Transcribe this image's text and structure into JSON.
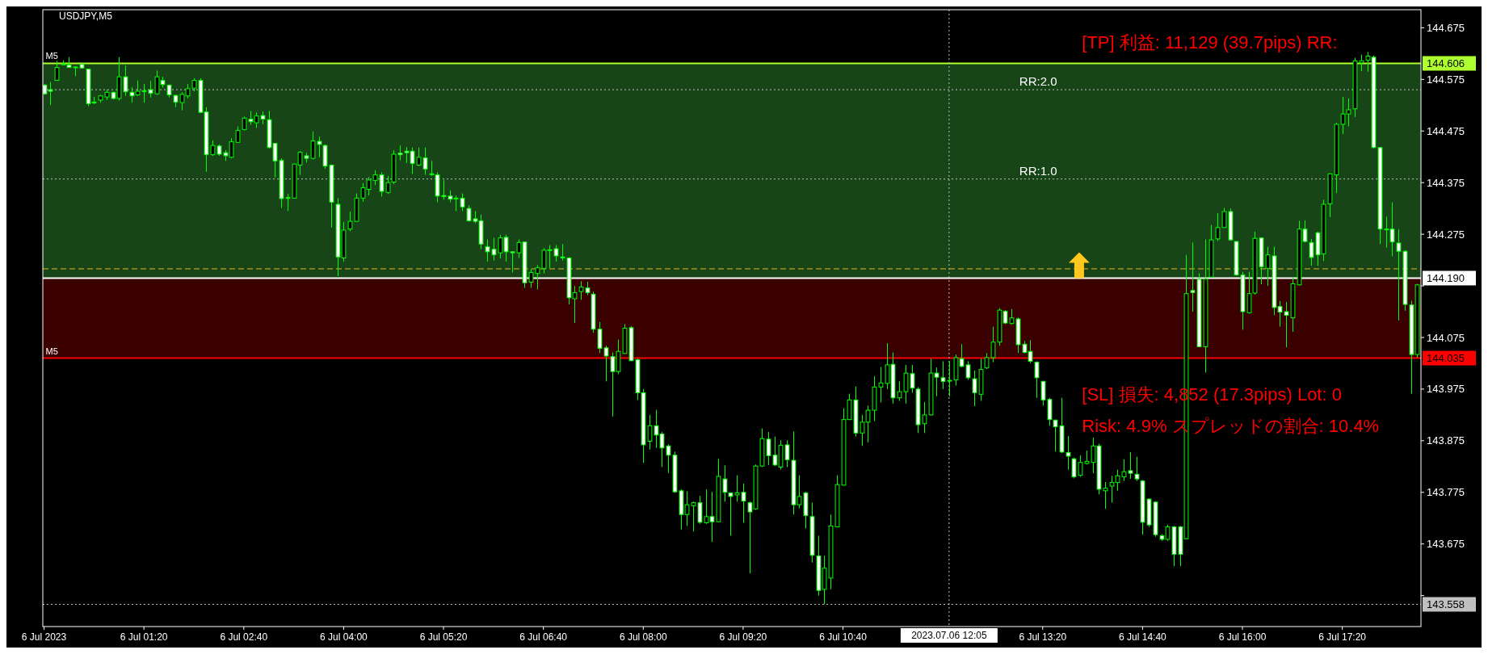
{
  "chart_data": {
    "type": "candlestick",
    "title": "USDJPY,M5",
    "color": "#00ff00",
    "x": [
      "2023-07-06T00:00",
      "2023-07-06T00:05",
      "2023-07-06T00:10",
      "2023-07-06T00:15",
      "2023-07-06T00:20",
      "2023-07-06T00:25",
      "2023-07-06T00:30",
      "2023-07-06T00:35",
      "2023-07-06T00:40",
      "2023-07-06T00:45",
      "2023-07-06T00:50",
      "2023-07-06T00:55",
      "2023-07-06T01:00",
      "2023-07-06T01:05",
      "2023-07-06T01:10",
      "2023-07-06T01:15",
      "2023-07-06T01:20",
      "2023-07-06T01:25",
      "2023-07-06T01:30",
      "2023-07-06T01:35",
      "2023-07-06T01:40",
      "2023-07-06T01:45",
      "2023-07-06T01:50",
      "2023-07-06T01:55",
      "2023-07-06T02:00",
      "2023-07-06T02:05",
      "2023-07-06T02:10",
      "2023-07-06T02:15",
      "2023-07-06T02:20",
      "2023-07-06T02:25",
      "2023-07-06T02:30",
      "2023-07-06T02:35",
      "2023-07-06T02:40",
      "2023-07-06T02:45",
      "2023-07-06T02:50",
      "2023-07-06T02:55",
      "2023-07-06T03:00",
      "2023-07-06T03:05",
      "2023-07-06T03:10",
      "2023-07-06T03:15",
      "2023-07-06T03:20",
      "2023-07-06T03:25",
      "2023-07-06T03:30",
      "2023-07-06T03:35",
      "2023-07-06T03:40",
      "2023-07-06T03:45",
      "2023-07-06T03:50",
      "2023-07-06T03:55",
      "2023-07-06T04:00",
      "2023-07-06T04:05",
      "2023-07-06T04:10",
      "2023-07-06T04:15",
      "2023-07-06T04:20",
      "2023-07-06T04:25",
      "2023-07-06T04:30",
      "2023-07-06T04:35",
      "2023-07-06T04:40",
      "2023-07-06T04:45",
      "2023-07-06T04:50",
      "2023-07-06T04:55",
      "2023-07-06T05:00",
      "2023-07-06T05:05",
      "2023-07-06T05:10",
      "2023-07-06T05:15",
      "2023-07-06T05:20",
      "2023-07-06T05:25",
      "2023-07-06T05:30",
      "2023-07-06T05:35",
      "2023-07-06T05:40",
      "2023-07-06T05:45",
      "2023-07-06T05:50",
      "2023-07-06T05:55",
      "2023-07-06T06:00",
      "2023-07-06T06:05",
      "2023-07-06T06:10",
      "2023-07-06T06:15",
      "2023-07-06T06:20",
      "2023-07-06T06:25",
      "2023-07-06T06:30",
      "2023-07-06T06:35",
      "2023-07-06T06:40",
      "2023-07-06T06:45",
      "2023-07-06T06:50",
      "2023-07-06T06:55",
      "2023-07-06T07:00",
      "2023-07-06T07:05",
      "2023-07-06T07:10",
      "2023-07-06T07:15",
      "2023-07-06T07:20",
      "2023-07-06T07:25",
      "2023-07-06T07:30",
      "2023-07-06T07:35",
      "2023-07-06T07:40",
      "2023-07-06T07:45",
      "2023-07-06T07:50",
      "2023-07-06T07:55",
      "2023-07-06T08:00",
      "2023-07-06T08:05",
      "2023-07-06T08:10",
      "2023-07-06T08:15",
      "2023-07-06T08:20",
      "2023-07-06T08:25",
      "2023-07-06T08:30",
      "2023-07-06T08:35",
      "2023-07-06T08:40",
      "2023-07-06T08:45",
      "2023-07-06T08:50",
      "2023-07-06T08:55",
      "2023-07-06T09:00",
      "2023-07-06T09:05",
      "2023-07-06T09:10",
      "2023-07-06T09:15",
      "2023-07-06T09:20",
      "2023-07-06T09:25",
      "2023-07-06T09:30",
      "2023-07-06T09:35",
      "2023-07-06T09:40",
      "2023-07-06T09:45",
      "2023-07-06T09:50",
      "2023-07-06T09:55",
      "2023-07-06T10:00",
      "2023-07-06T10:05",
      "2023-07-06T10:10",
      "2023-07-06T10:15",
      "2023-07-06T10:20",
      "2023-07-06T10:25",
      "2023-07-06T10:30",
      "2023-07-06T10:35",
      "2023-07-06T10:40",
      "2023-07-06T10:45",
      "2023-07-06T10:50",
      "2023-07-06T10:55",
      "2023-07-06T11:00",
      "2023-07-06T11:05",
      "2023-07-06T11:10",
      "2023-07-06T11:15",
      "2023-07-06T11:20",
      "2023-07-06T11:25",
      "2023-07-06T11:30",
      "2023-07-06T11:35",
      "2023-07-06T11:40",
      "2023-07-06T11:45",
      "2023-07-06T11:50",
      "2023-07-06T11:55",
      "2023-07-06T12:00",
      "2023-07-06T12:05",
      "2023-07-06T12:10",
      "2023-07-06T12:15",
      "2023-07-06T12:20",
      "2023-07-06T12:25",
      "2023-07-06T12:30",
      "2023-07-06T12:35",
      "2023-07-06T12:40",
      "2023-07-06T12:45",
      "2023-07-06T12:50",
      "2023-07-06T12:55",
      "2023-07-06T13:00",
      "2023-07-06T13:05",
      "2023-07-06T13:10",
      "2023-07-06T13:15",
      "2023-07-06T13:20",
      "2023-07-06T13:25",
      "2023-07-06T13:30",
      "2023-07-06T13:35",
      "2023-07-06T13:40",
      "2023-07-06T13:45",
      "2023-07-06T13:50",
      "2023-07-06T13:55",
      "2023-07-06T14:00",
      "2023-07-06T14:05",
      "2023-07-06T14:10",
      "2023-07-06T14:15",
      "2023-07-06T14:20",
      "2023-07-06T14:25",
      "2023-07-06T14:30",
      "2023-07-06T14:35",
      "2023-07-06T14:40",
      "2023-07-06T14:45",
      "2023-07-06T14:50",
      "2023-07-06T14:55",
      "2023-07-06T15:00",
      "2023-07-06T15:05",
      "2023-07-06T15:10",
      "2023-07-06T15:15",
      "2023-07-06T15:20",
      "2023-07-06T15:25",
      "2023-07-06T15:30",
      "2023-07-06T15:35",
      "2023-07-06T15:40",
      "2023-07-06T15:45",
      "2023-07-06T15:50",
      "2023-07-06T15:55",
      "2023-07-06T16:00",
      "2023-07-06T16:05",
      "2023-07-06T16:10",
      "2023-07-06T16:15",
      "2023-07-06T16:20",
      "2023-07-06T16:25",
      "2023-07-06T16:30",
      "2023-07-06T16:35",
      "2023-07-06T16:40",
      "2023-07-06T16:45",
      "2023-07-06T16:50",
      "2023-07-06T16:55",
      "2023-07-06T17:00",
      "2023-07-06T17:05",
      "2023-07-06T17:10",
      "2023-07-06T17:15",
      "2023-07-06T17:20",
      "2023-07-06T17:25",
      "2023-07-06T17:30",
      "2023-07-06T17:35",
      "2023-07-06T17:40",
      "2023-07-06T17:45",
      "2023-07-06T17:50",
      "2023-07-06T17:55",
      "2023-07-06T18:00",
      "2023-07-06T18:05",
      "2023-07-06T18:10",
      "2023-07-06T18:15",
      "2023-07-06T18:20"
    ],
    "ohlc": [
      [
        144.564,
        144.566,
        144.545,
        144.547
      ],
      [
        144.555,
        144.57,
        144.525,
        144.552
      ],
      [
        144.573,
        144.611,
        144.573,
        144.598
      ],
      [
        144.605,
        144.612,
        144.602,
        144.604
      ],
      [
        144.603,
        144.618,
        144.598,
        144.598
      ],
      [
        144.599,
        144.6,
        144.581,
        144.598
      ],
      [
        144.604,
        144.605,
        144.596,
        144.597
      ],
      [
        144.595,
        144.595,
        144.523,
        144.528
      ],
      [
        144.531,
        144.541,
        144.527,
        144.53
      ],
      [
        144.535,
        144.545,
        144.53,
        144.543
      ],
      [
        144.541,
        144.555,
        144.535,
        144.55
      ],
      [
        144.55,
        144.551,
        144.536,
        144.538
      ],
      [
        144.538,
        144.618,
        144.534,
        144.58
      ],
      [
        144.58,
        144.602,
        144.543,
        144.551
      ],
      [
        144.55,
        144.56,
        144.53,
        144.543
      ],
      [
        144.545,
        144.573,
        144.543,
        144.552
      ],
      [
        144.553,
        144.566,
        144.53,
        144.552
      ],
      [
        144.555,
        144.572,
        144.54,
        144.548
      ],
      [
        144.547,
        144.592,
        144.545,
        144.58
      ],
      [
        144.573,
        144.58,
        144.559,
        144.565
      ],
      [
        144.564,
        144.565,
        144.54,
        144.545
      ],
      [
        144.544,
        144.545,
        144.521,
        144.531
      ],
      [
        144.53,
        144.55,
        144.515,
        144.546
      ],
      [
        144.543,
        144.566,
        144.538,
        144.557
      ],
      [
        144.558,
        144.577,
        144.552,
        144.573
      ],
      [
        144.573,
        144.577,
        144.51,
        144.511
      ],
      [
        144.512,
        144.521,
        144.396,
        144.429
      ],
      [
        144.429,
        144.457,
        144.427,
        144.447
      ],
      [
        144.446,
        144.449,
        144.427,
        144.43
      ],
      [
        144.433,
        144.438,
        144.417,
        144.427
      ],
      [
        144.424,
        144.461,
        144.422,
        144.454
      ],
      [
        144.453,
        144.484,
        144.452,
        144.476
      ],
      [
        144.478,
        144.503,
        144.476,
        144.5
      ],
      [
        144.498,
        144.514,
        144.487,
        144.493
      ],
      [
        144.491,
        144.511,
        144.481,
        144.504
      ],
      [
        144.505,
        144.513,
        144.488,
        144.498
      ],
      [
        144.497,
        144.514,
        144.441,
        144.443
      ],
      [
        144.451,
        144.452,
        144.385,
        144.417
      ],
      [
        144.418,
        144.422,
        144.326,
        144.344
      ],
      [
        144.346,
        144.353,
        144.32,
        144.345
      ],
      [
        144.345,
        144.412,
        144.344,
        144.411
      ],
      [
        144.409,
        144.436,
        144.39,
        144.434
      ],
      [
        144.427,
        144.433,
        144.414,
        144.422
      ],
      [
        144.422,
        144.474,
        144.42,
        144.456
      ],
      [
        144.455,
        144.464,
        144.424,
        144.449
      ],
      [
        144.447,
        144.449,
        144.402,
        144.407
      ],
      [
        144.409,
        144.41,
        144.288,
        144.337
      ],
      [
        144.333,
        144.345,
        144.194,
        144.231
      ],
      [
        144.229,
        144.299,
        144.222,
        144.283
      ],
      [
        144.285,
        144.319,
        144.281,
        144.3
      ],
      [
        144.3,
        144.354,
        144.299,
        144.345
      ],
      [
        144.345,
        144.374,
        144.338,
        144.365
      ],
      [
        144.362,
        144.386,
        144.35,
        144.38
      ],
      [
        144.379,
        144.399,
        144.37,
        144.39
      ],
      [
        144.39,
        144.395,
        144.348,
        144.358
      ],
      [
        144.356,
        144.388,
        144.353,
        144.375
      ],
      [
        144.376,
        144.438,
        144.372,
        144.43
      ],
      [
        144.432,
        144.447,
        144.418,
        144.429
      ],
      [
        144.436,
        144.444,
        144.413,
        144.433
      ],
      [
        144.436,
        144.443,
        144.392,
        144.412
      ],
      [
        144.409,
        144.443,
        144.407,
        144.424
      ],
      [
        144.423,
        144.443,
        144.39,
        144.401
      ],
      [
        144.392,
        144.417,
        144.388,
        144.391
      ],
      [
        144.39,
        144.395,
        144.337,
        144.349
      ],
      [
        144.35,
        144.38,
        144.342,
        144.348
      ],
      [
        144.349,
        144.36,
        144.337,
        144.343
      ],
      [
        144.345,
        144.35,
        144.32,
        144.344
      ],
      [
        144.345,
        144.354,
        144.32,
        144.328
      ],
      [
        144.325,
        144.331,
        144.299,
        144.301
      ],
      [
        144.305,
        144.32,
        144.296,
        144.3
      ],
      [
        144.301,
        144.313,
        144.246,
        144.256
      ],
      [
        144.251,
        144.265,
        144.222,
        144.241
      ],
      [
        144.246,
        144.268,
        144.224,
        144.235
      ],
      [
        144.239,
        144.274,
        144.228,
        144.268
      ],
      [
        144.269,
        144.274,
        144.222,
        144.241
      ],
      [
        144.241,
        144.242,
        144.201,
        144.239
      ],
      [
        144.239,
        144.265,
        144.229,
        144.259
      ],
      [
        144.26,
        144.261,
        144.171,
        144.181
      ],
      [
        144.182,
        144.208,
        144.171,
        144.201
      ],
      [
        144.199,
        144.215,
        144.168,
        144.21
      ],
      [
        144.209,
        144.248,
        144.199,
        144.244
      ],
      [
        144.244,
        144.254,
        144.21,
        144.245
      ],
      [
        144.247,
        144.254,
        144.222,
        144.233
      ],
      [
        144.231,
        144.256,
        144.224,
        144.229
      ],
      [
        144.229,
        144.231,
        144.139,
        144.152
      ],
      [
        144.15,
        144.175,
        144.103,
        144.162
      ],
      [
        144.164,
        144.184,
        144.148,
        144.173
      ],
      [
        144.171,
        144.183,
        144.157,
        144.162
      ],
      [
        144.159,
        144.164,
        144.084,
        144.091
      ],
      [
        144.091,
        144.105,
        144.045,
        144.054
      ],
      [
        144.055,
        144.059,
        143.99,
        144.039
      ],
      [
        144.038,
        144.046,
        143.922,
        144.009
      ],
      [
        144.009,
        144.071,
        144.004,
        144.048
      ],
      [
        144.044,
        144.101,
        144.043,
        144.093
      ],
      [
        144.094,
        144.097,
        144.029,
        144.03
      ],
      [
        144.032,
        144.034,
        143.954,
        143.968
      ],
      [
        143.968,
        143.975,
        143.832,
        143.867
      ],
      [
        143.874,
        143.925,
        143.858,
        143.904
      ],
      [
        143.904,
        143.935,
        143.861,
        143.886
      ],
      [
        143.888,
        143.892,
        143.824,
        143.861
      ],
      [
        143.865,
        143.868,
        143.812,
        143.847
      ],
      [
        143.847,
        143.854,
        143.774,
        143.776
      ],
      [
        143.778,
        143.781,
        143.703,
        143.732
      ],
      [
        143.732,
        143.777,
        143.71,
        143.751
      ],
      [
        143.749,
        143.757,
        143.699,
        143.755
      ],
      [
        143.755,
        143.768,
        143.714,
        143.717
      ],
      [
        143.716,
        143.781,
        143.714,
        143.728
      ],
      [
        143.728,
        143.776,
        143.679,
        143.718
      ],
      [
        143.718,
        143.84,
        143.717,
        143.806
      ],
      [
        143.801,
        143.827,
        143.757,
        143.775
      ],
      [
        143.774,
        143.775,
        143.691,
        143.767
      ],
      [
        143.77,
        143.808,
        143.757,
        143.774
      ],
      [
        143.775,
        143.792,
        143.716,
        143.758
      ],
      [
        143.755,
        143.757,
        143.618,
        143.737
      ],
      [
        143.743,
        143.829,
        143.741,
        143.826
      ],
      [
        143.826,
        143.899,
        143.824,
        143.879
      ],
      [
        143.878,
        143.892,
        143.828,
        143.846
      ],
      [
        143.847,
        143.883,
        143.826,
        143.828
      ],
      [
        143.824,
        143.876,
        143.819,
        143.866
      ],
      [
        143.867,
        143.876,
        143.824,
        143.838
      ],
      [
        143.837,
        143.893,
        143.732,
        143.751
      ],
      [
        143.751,
        143.808,
        143.744,
        143.767
      ],
      [
        143.774,
        143.776,
        143.705,
        143.73
      ],
      [
        143.728,
        143.755,
        143.639,
        143.653
      ],
      [
        143.652,
        143.691,
        143.575,
        143.585
      ],
      [
        143.587,
        143.652,
        143.558,
        143.628
      ],
      [
        143.609,
        143.732,
        143.587,
        143.71
      ],
      [
        143.708,
        143.808,
        143.707,
        143.79
      ],
      [
        143.789,
        143.938,
        143.788,
        143.916
      ],
      [
        143.916,
        143.966,
        143.915,
        143.954
      ],
      [
        143.954,
        143.98,
        143.883,
        143.89
      ],
      [
        143.89,
        143.925,
        143.865,
        143.911
      ],
      [
        143.911,
        143.943,
        143.872,
        143.934
      ],
      [
        143.934,
        144.0,
        143.913,
        143.979
      ],
      [
        143.979,
        144.018,
        143.949,
        143.987
      ],
      [
        143.986,
        144.064,
        143.975,
        144.022
      ],
      [
        144.023,
        144.046,
        143.947,
        143.958
      ],
      [
        143.958,
        143.99,
        143.952,
        143.97
      ],
      [
        143.97,
        144.022,
        143.947,
        144.006
      ],
      [
        144.005,
        144.022,
        143.968,
        143.977
      ],
      [
        143.975,
        143.979,
        143.89,
        143.906
      ],
      [
        143.908,
        143.95,
        143.89,
        143.925
      ],
      [
        143.925,
        144.034,
        143.924,
        144.006
      ],
      [
        144.006,
        144.017,
        143.961,
        143.998
      ],
      [
        143.997,
        144.029,
        143.975,
        143.99
      ],
      [
        143.992,
        144.029,
        143.961,
        143.991
      ],
      [
        143.993,
        144.042,
        143.982,
        144.036
      ],
      [
        144.034,
        144.062,
        144.017,
        144.019
      ],
      [
        144.022,
        144.029,
        143.993,
        143.997
      ],
      [
        143.995,
        144.011,
        143.942,
        143.968
      ],
      [
        143.965,
        144.034,
        143.952,
        144.013
      ],
      [
        144.016,
        144.045,
        144.014,
        144.036
      ],
      [
        144.036,
        144.096,
        144.027,
        144.066
      ],
      [
        144.066,
        144.132,
        144.059,
        144.128
      ],
      [
        144.126,
        144.128,
        144.101,
        144.103
      ],
      [
        144.102,
        144.13,
        144.1,
        144.113
      ],
      [
        144.111,
        144.114,
        144.045,
        144.061
      ],
      [
        144.062,
        144.068,
        144.044,
        144.046
      ],
      [
        144.048,
        144.07,
        144.025,
        144.029
      ],
      [
        144.027,
        144.029,
        143.958,
        143.997
      ],
      [
        143.99,
        143.991,
        143.943,
        143.954
      ],
      [
        143.955,
        143.958,
        143.904,
        143.916
      ],
      [
        143.915,
        143.916,
        143.854,
        143.902
      ],
      [
        143.904,
        143.958,
        143.851,
        143.853
      ],
      [
        143.852,
        143.884,
        143.819,
        143.845
      ],
      [
        143.84,
        143.842,
        143.802,
        143.805
      ],
      [
        143.808,
        143.847,
        143.805,
        143.833
      ],
      [
        143.831,
        143.856,
        143.829,
        143.835
      ],
      [
        143.833,
        143.881,
        143.812,
        143.865
      ],
      [
        143.865,
        143.869,
        143.771,
        143.781
      ],
      [
        143.778,
        143.795,
        143.743,
        143.783
      ],
      [
        143.787,
        143.807,
        143.755,
        143.794
      ],
      [
        143.794,
        143.819,
        143.778,
        143.807
      ],
      [
        143.805,
        143.839,
        143.797,
        143.815
      ],
      [
        143.817,
        143.853,
        143.801,
        143.812
      ],
      [
        143.81,
        143.844,
        143.797,
        143.801
      ],
      [
        143.797,
        143.799,
        143.693,
        143.717
      ],
      [
        143.762,
        143.763,
        143.708,
        143.712
      ],
      [
        143.756,
        143.758,
        143.689,
        143.693
      ],
      [
        143.691,
        143.694,
        143.681,
        143.684
      ],
      [
        143.684,
        143.712,
        143.681,
        143.708
      ],
      [
        143.708,
        143.71,
        143.632,
        143.655
      ],
      [
        143.708,
        143.71,
        143.632,
        143.655
      ],
      [
        143.685,
        144.235,
        143.684,
        144.16
      ],
      [
        144.166,
        144.259,
        144.125,
        144.162
      ],
      [
        144.188,
        144.199,
        144.056,
        144.057
      ],
      [
        144.057,
        144.265,
        144.007,
        144.188
      ],
      [
        144.192,
        144.293,
        144.191,
        144.264
      ],
      [
        144.266,
        144.316,
        144.262,
        144.288
      ],
      [
        144.288,
        144.326,
        144.288,
        144.319
      ],
      [
        144.319,
        144.325,
        144.262,
        144.264
      ],
      [
        144.261,
        144.262,
        144.195,
        144.196
      ],
      [
        144.196,
        144.202,
        144.09,
        144.125
      ],
      [
        144.123,
        144.202,
        144.121,
        144.16
      ],
      [
        144.161,
        144.28,
        144.158,
        144.267
      ],
      [
        144.268,
        144.269,
        144.178,
        144.212
      ],
      [
        144.209,
        144.251,
        144.175,
        144.235
      ],
      [
        144.233,
        144.251,
        144.118,
        144.133
      ],
      [
        144.135,
        144.146,
        144.096,
        144.124
      ],
      [
        144.125,
        144.144,
        144.056,
        144.118
      ],
      [
        144.113,
        144.192,
        144.086,
        144.179
      ],
      [
        144.177,
        144.301,
        144.176,
        144.285
      ],
      [
        144.285,
        144.302,
        144.259,
        144.261
      ],
      [
        144.259,
        144.266,
        144.214,
        144.23
      ],
      [
        144.278,
        144.28,
        144.214,
        144.235
      ],
      [
        144.237,
        144.342,
        144.223,
        144.333
      ],
      [
        144.334,
        144.393,
        144.308,
        144.392
      ],
      [
        144.39,
        144.491,
        144.355,
        144.488
      ],
      [
        144.488,
        144.541,
        144.469,
        144.508
      ],
      [
        144.508,
        144.538,
        144.484,
        144.516
      ],
      [
        144.518,
        144.617,
        144.502,
        144.611
      ],
      [
        144.607,
        144.623,
        144.591,
        144.611
      ],
      [
        144.612,
        144.628,
        144.59,
        144.62
      ],
      [
        144.618,
        144.621,
        144.441,
        144.443
      ],
      [
        144.443,
        144.444,
        144.256,
        144.285
      ],
      [
        144.285,
        144.309,
        144.249,
        144.284
      ],
      [
        144.285,
        144.337,
        144.232,
        144.26
      ],
      [
        144.258,
        144.285,
        144.108,
        144.242
      ],
      [
        144.242,
        144.244,
        144.127,
        144.139
      ],
      [
        144.138,
        144.146,
        143.966,
        144.042
      ],
      [
        144.042,
        144.179,
        144.036,
        144.177
      ]
    ],
    "xlim": [
      "2023-07-05T23:59",
      "2023-07-06T18:23"
    ],
    "xticks": [
      {
        "value": "2023-07-06T00:00",
        "label": "6 Jul 2023"
      },
      {
        "value": "2023-07-06T01:20",
        "label": "6 Jul 01:20"
      },
      {
        "value": "2023-07-06T02:40",
        "label": "6 Jul 02:40"
      },
      {
        "value": "2023-07-06T04:00",
        "label": "6 Jul 04:00"
      },
      {
        "value": "2023-07-06T05:20",
        "label": "6 Jul 05:20"
      },
      {
        "value": "2023-07-06T06:40",
        "label": "6 Jul 06:40"
      },
      {
        "value": "2023-07-06T08:00",
        "label": "6 Jul 08:00"
      },
      {
        "value": "2023-07-06T09:20",
        "label": "6 Jul 09:20"
      },
      {
        "value": "2023-07-06T10:40",
        "label": "6 Jul 10:40"
      },
      {
        "value": "2023-07-06T13:20",
        "label": "6 Jul 13:20"
      },
      {
        "value": "2023-07-06T14:40",
        "label": "6 Jul 14:40"
      },
      {
        "value": "2023-07-06T16:00",
        "label": "6 Jul 16:00"
      },
      {
        "value": "2023-07-06T17:20",
        "label": "6 Jul 17:20"
      }
    ],
    "ylim": [
      143.515,
      144.71
    ],
    "yticks": [
      {
        "value": 143.575,
        "label": null
      },
      143.675,
      143.775,
      143.875,
      143.975,
      144.075,
      {
        "value": 144.175,
        "label": null
      },
      144.275,
      144.375,
      144.475,
      144.575,
      144.675
    ],
    "bands": [
      {
        "axis": "y",
        "from": 144.19,
        "to": 144.606,
        "color": "#339933"
      },
      {
        "axis": "y",
        "from": 144.035,
        "to": 144.19,
        "color": "#800000"
      }
    ],
    "ref_lines": [
      {
        "axis": "y",
        "value": 144.606,
        "label": "144.606",
        "color": "#adff2f",
        "line_style": "solid"
      },
      {
        "axis": "y",
        "value": 144.19,
        "label": "144.190",
        "color": "#ffffff",
        "line_style": "solid"
      },
      {
        "axis": "y",
        "value": 144.035,
        "label": "144.035",
        "color": "#ff0000",
        "line_style": "solid"
      },
      {
        "axis": "y",
        "value": 143.558,
        "label": "143.558",
        "color": "#c0c0c0",
        "line_style": "dotted"
      },
      {
        "axis": "y",
        "value": 144.555,
        "color": "#c0c0c0",
        "line_style": "dotted"
      },
      {
        "axis": "y",
        "value": 144.382,
        "color": "#c0c0c0",
        "line_style": "dotted"
      },
      {
        "axis": "y",
        "value": 144.208,
        "color": "#e6b422",
        "line_style": "dashed"
      },
      {
        "axis": "x",
        "value": "2023-07-06T12:05",
        "label": "2023.07.06 12:05",
        "color": "#c0c0c0",
        "line_style": "dotted"
      }
    ],
    "annotations": [
      {
        "text": "M5",
        "x": "2023-07-06T00:00",
        "y": 144.606
      },
      {
        "text": "M5",
        "x": "2023-07-06T00:00",
        "y": 144.035
      },
      {
        "text": "RR:2.0",
        "x": "2023-07-06T13:00",
        "y": 144.555
      },
      {
        "text": "RR:1.0",
        "x": "2023-07-06T13:00",
        "y": 144.382
      },
      "[TP] 利益: 11,129 (39.7pips)  RR:",
      "[SL] 損失: 4,852 (17.3pips)  Lot: 0",
      "Risk: 4.9%  スプレッドの割合: 10.4%"
    ]
  }
}
